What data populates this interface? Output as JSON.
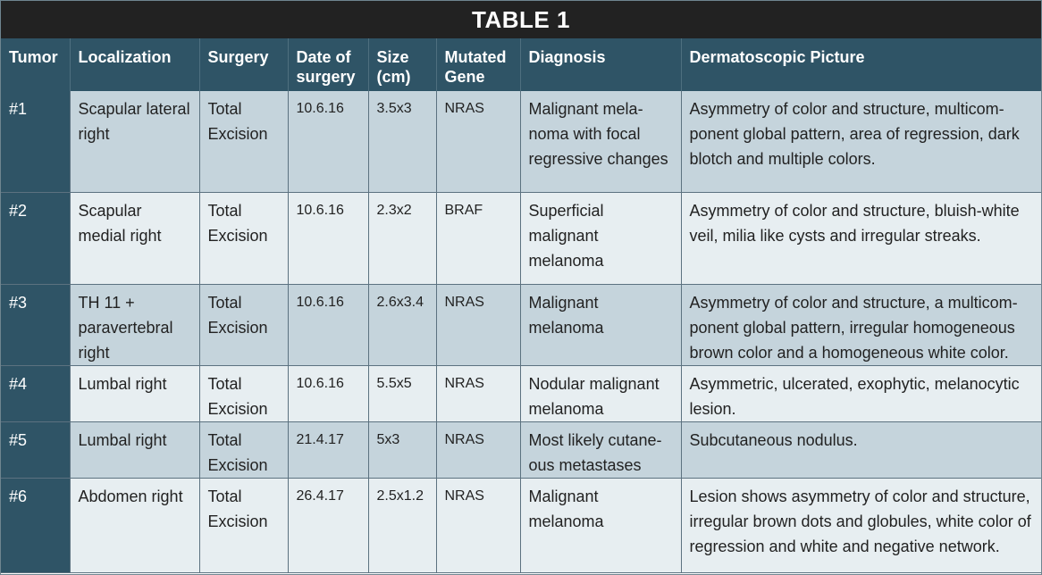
{
  "table": {
    "title": "TABLE 1",
    "headers": [
      "Tumor",
      "Localization",
      "Surgery",
      "Date of surgery",
      "Size (cm)",
      "Mutated Gene",
      "Diagnosis",
      "Dermatoscopic Picture"
    ],
    "rows": [
      {
        "tumor": "#1",
        "localization": "Scapular lateral right",
        "surgery": "Total Excision",
        "date": "10.6.16",
        "size": "3.5x3",
        "gene": "NRAS",
        "diagnosis": "Malignant  mela-noma with focal regressive changes",
        "picture": "Asymmetry of color and structure, multicom-ponent global pattern, area of regression, dark blotch and multiple colors."
      },
      {
        "tumor": "#2",
        "localization": "Scapular medial right",
        "surgery": "Total Excision",
        "date": "10.6.16",
        "size": "2.3x2",
        "gene": "BRAF",
        "diagnosis": "Superficial malignant melanoma",
        "picture": "Asymmetry of color and structure, bluish-white veil, milia like cysts and irregular streaks."
      },
      {
        "tumor": "#3",
        "localization": "TH 11 + paravertebral right",
        "surgery": "Total Excision",
        "date": "10.6.16",
        "size": "2.6x3.4",
        "gene": "NRAS",
        "diagnosis": "Malignant melanoma",
        "picture": "Asymmetry of color and structure, a multicom-ponent global pattern, irregular homogeneous brown color and a homogeneous white color."
      },
      {
        "tumor": "#4",
        "localization": "Lumbal right",
        "surgery": "Total Excision",
        "date": "10.6.16",
        "size": "5.5x5",
        "gene": "NRAS",
        "diagnosis": "Nodular malignant melanoma",
        "picture": "Asymmetric, ulcerated, exophytic, melanocytic lesion."
      },
      {
        "tumor": "#5",
        "localization": "Lumbal right",
        "surgery": "Total Excision",
        "date": "21.4.17",
        "size": "5x3",
        "gene": "NRAS",
        "diagnosis": "Most likely cutane-ous metastases",
        "picture": "Subcutaneous nodulus."
      },
      {
        "tumor": "#6",
        "localization": "Abdomen right",
        "surgery": "Total Excision",
        "date": "26.4.17",
        "size": "2.5x1.2",
        "gene": "NRAS",
        "diagnosis": "Malignant melanoma",
        "picture": "Lesion shows asymmetry of color and structure, irregular brown dots and globules, white color of regression and white and negative network."
      }
    ]
  }
}
